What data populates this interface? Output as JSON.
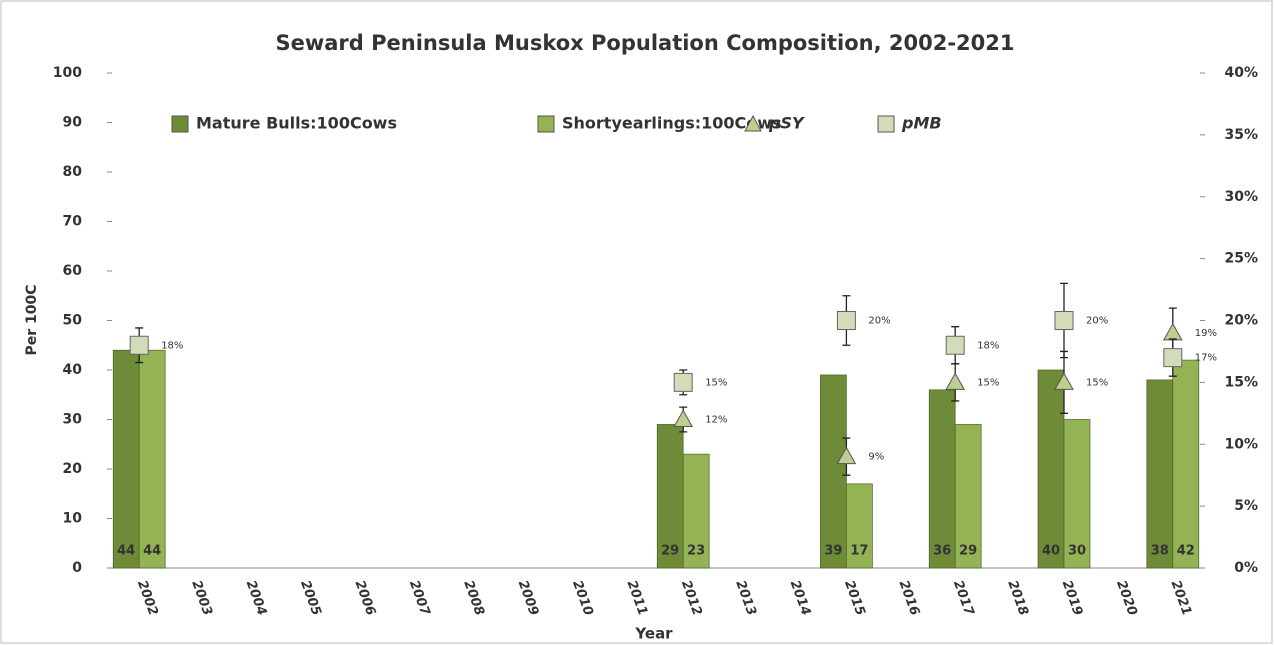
{
  "chart_data": {
    "type": "bar",
    "title": "Seward Peninsula Muskox Population Composition, 2002-2021",
    "x_label": "Year",
    "y_label": "Per 100C",
    "categories": [
      "2002",
      "2003",
      "2004",
      "2005",
      "2006",
      "2007",
      "2008",
      "2009",
      "2010",
      "2011",
      "2012",
      "2013",
      "2014",
      "2015",
      "2016",
      "2017",
      "2018",
      "2019",
      "2020",
      "2021"
    ],
    "series": [
      {
        "name": "Mature Bulls:100Cows",
        "color": "#6e8b38",
        "values": [
          44,
          null,
          null,
          null,
          null,
          null,
          null,
          null,
          null,
          null,
          29,
          null,
          null,
          39,
          null,
          36,
          null,
          40,
          null,
          38
        ]
      },
      {
        "name": "Shortyearlings:100Cows",
        "color": "#93b354",
        "values": [
          44,
          null,
          null,
          null,
          null,
          null,
          null,
          null,
          null,
          null,
          23,
          null,
          null,
          17,
          null,
          29,
          null,
          30,
          null,
          42
        ]
      },
      {
        "name": "pSY",
        "color": "#bccf90",
        "axis": "y2",
        "marker": "triangle",
        "values": [
          null,
          null,
          null,
          null,
          null,
          null,
          null,
          null,
          null,
          null,
          12,
          null,
          null,
          9,
          null,
          15,
          null,
          15,
          null,
          19
        ],
        "value_labels": [
          null,
          null,
          null,
          null,
          null,
          null,
          null,
          null,
          null,
          null,
          "12%",
          null,
          null,
          "9%",
          null,
          "15%",
          null,
          "15%",
          null,
          "19%"
        ],
        "errors": [
          null,
          null,
          null,
          null,
          null,
          null,
          null,
          null,
          null,
          null,
          1,
          null,
          null,
          1.5,
          null,
          1.5,
          null,
          2.5,
          null,
          2
        ]
      },
      {
        "name": "pMB",
        "color": "#d3dcb8",
        "axis": "y2",
        "marker": "square",
        "values": [
          18,
          null,
          null,
          null,
          null,
          null,
          null,
          null,
          null,
          null,
          15,
          null,
          null,
          20,
          null,
          18,
          null,
          20,
          null,
          17
        ],
        "value_labels": [
          "18%",
          null,
          null,
          null,
          null,
          null,
          null,
          null,
          null,
          null,
          "15%",
          null,
          null,
          "20%",
          null,
          "18%",
          null,
          "20%",
          null,
          "17%"
        ],
        "errors": [
          1.4,
          null,
          null,
          null,
          null,
          null,
          null,
          null,
          null,
          null,
          1,
          null,
          null,
          2,
          null,
          1.5,
          null,
          3,
          null,
          1.5
        ]
      }
    ],
    "ylim": [
      0,
      100
    ],
    "yticks": [
      0,
      10,
      20,
      30,
      40,
      50,
      60,
      70,
      80,
      90,
      100
    ],
    "y2lim": [
      0,
      40
    ],
    "y2ticks": [
      {
        "value": 0,
        "label": "0%"
      },
      {
        "value": 5,
        "label": "5%"
      },
      {
        "value": 10,
        "label": "10%"
      },
      {
        "value": 15,
        "label": "15%"
      },
      {
        "value": 20,
        "label": "20%"
      },
      {
        "value": 25,
        "label": "25%"
      },
      {
        "value": 30,
        "label": "30%"
      },
      {
        "value": 35,
        "label": "35%"
      },
      {
        "value": 40,
        "label": "40%"
      }
    ],
    "legend": "top"
  }
}
